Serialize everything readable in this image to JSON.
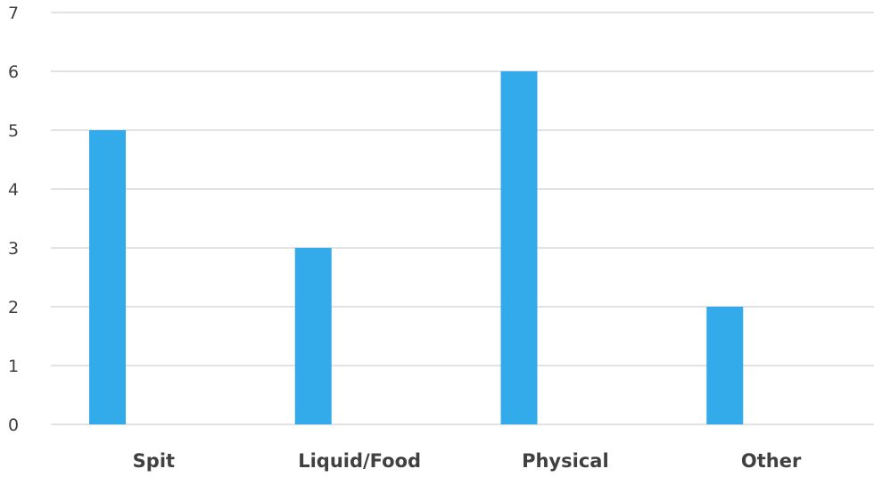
{
  "chart_data": {
    "type": "bar",
    "categories": [
      "Spit",
      "Liquid/Food",
      "Physical",
      "Other"
    ],
    "values": [
      5,
      3,
      6,
      2
    ],
    "ylim": [
      0,
      7
    ],
    "yticks": [
      0,
      1,
      2,
      3,
      4,
      5,
      6,
      7
    ],
    "grid": true,
    "bar_color": "#33abeb",
    "title": "",
    "xlabel": "",
    "ylabel": ""
  }
}
